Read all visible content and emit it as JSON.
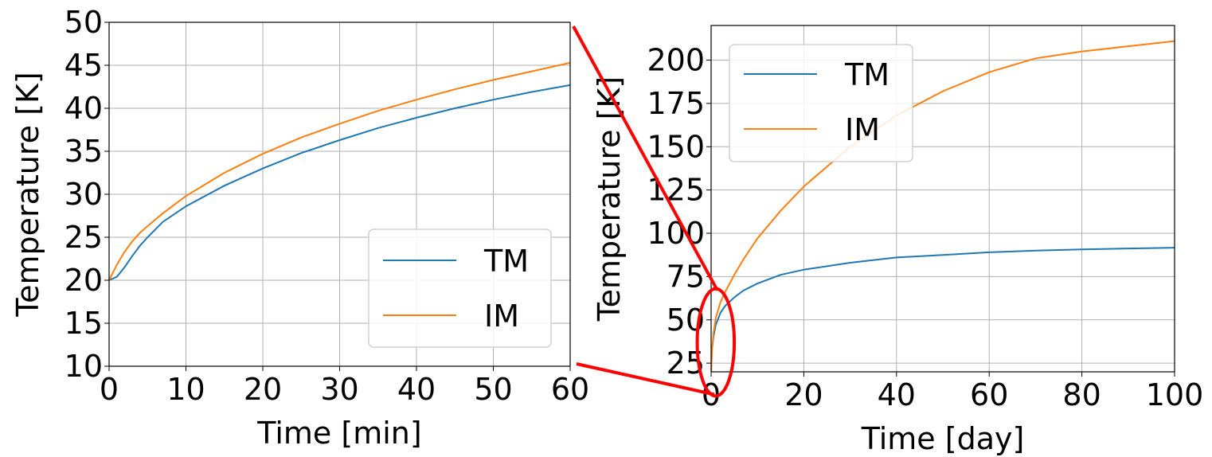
{
  "colors": {
    "tm": "#1f77b4",
    "im": "#ff7f0e",
    "zoom": "#ff0000",
    "grid": "#b0b0b0"
  },
  "chart_data": [
    {
      "type": "line",
      "xlabel": "Time [min]",
      "ylabel": "Temperature [K]",
      "xlim": [
        0,
        60
      ],
      "ylim": [
        10,
        50
      ],
      "xticks": [
        "0",
        "10",
        "20",
        "30",
        "40",
        "50",
        "60"
      ],
      "yticks": [
        "10",
        "15",
        "20",
        "25",
        "30",
        "35",
        "40",
        "45",
        "50"
      ],
      "grid": true,
      "legend_position": "lower-right",
      "series": [
        {
          "name": "TM",
          "x": [
            0,
            1,
            2,
            3,
            4,
            5,
            7,
            10,
            15,
            20,
            25,
            30,
            35,
            40,
            45,
            50,
            55,
            60
          ],
          "y": [
            20.0,
            20.4,
            21.5,
            22.8,
            24.0,
            25.0,
            26.8,
            28.6,
            31.0,
            33.0,
            34.8,
            36.3,
            37.7,
            38.9,
            40.0,
            41.0,
            41.9,
            42.7
          ]
        },
        {
          "name": "IM",
          "x": [
            0,
            1,
            2,
            3,
            4,
            5,
            7,
            10,
            15,
            20,
            25,
            30,
            35,
            40,
            45,
            50,
            55,
            60
          ],
          "y": [
            20.0,
            21.8,
            23.3,
            24.5,
            25.5,
            26.3,
            27.8,
            29.8,
            32.5,
            34.7,
            36.6,
            38.2,
            39.7,
            41.0,
            42.2,
            43.3,
            44.3,
            45.3
          ]
        }
      ]
    },
    {
      "type": "line",
      "xlabel": "Time [day]",
      "ylabel": "Temperature [K]",
      "xlim": [
        0,
        100
      ],
      "ylim": [
        20,
        220
      ],
      "xticks": [
        "0",
        "20",
        "40",
        "60",
        "80",
        "100"
      ],
      "yticks": [
        "25",
        "50",
        "75",
        "100",
        "125",
        "150",
        "175",
        "200"
      ],
      "grid": true,
      "legend_position": "upper-left",
      "series": [
        {
          "name": "TM",
          "x": [
            0,
            0.2,
            0.5,
            1,
            2,
            3,
            5,
            7,
            10,
            15,
            20,
            30,
            40,
            50,
            60,
            70,
            80,
            90,
            100
          ],
          "y": [
            20,
            33,
            40,
            47,
            54,
            58,
            63,
            67,
            71,
            76,
            79,
            83,
            86,
            87.5,
            89,
            90,
            90.7,
            91.2,
            91.7
          ]
        },
        {
          "name": "IM",
          "x": [
            0,
            0.2,
            0.5,
            1,
            2,
            3,
            5,
            7,
            10,
            15,
            20,
            30,
            40,
            50,
            60,
            70,
            80,
            90,
            100
          ],
          "y": [
            20,
            33,
            42,
            51,
            60,
            66,
            76,
            85,
            97,
            113,
            127,
            150,
            168,
            182,
            193,
            201,
            205,
            208,
            211
          ]
        }
      ]
    }
  ],
  "zoom_marker": {
    "ellipse_center": [
      1,
      37
    ],
    "ellipse_radii_data": [
      4,
      31
    ]
  }
}
